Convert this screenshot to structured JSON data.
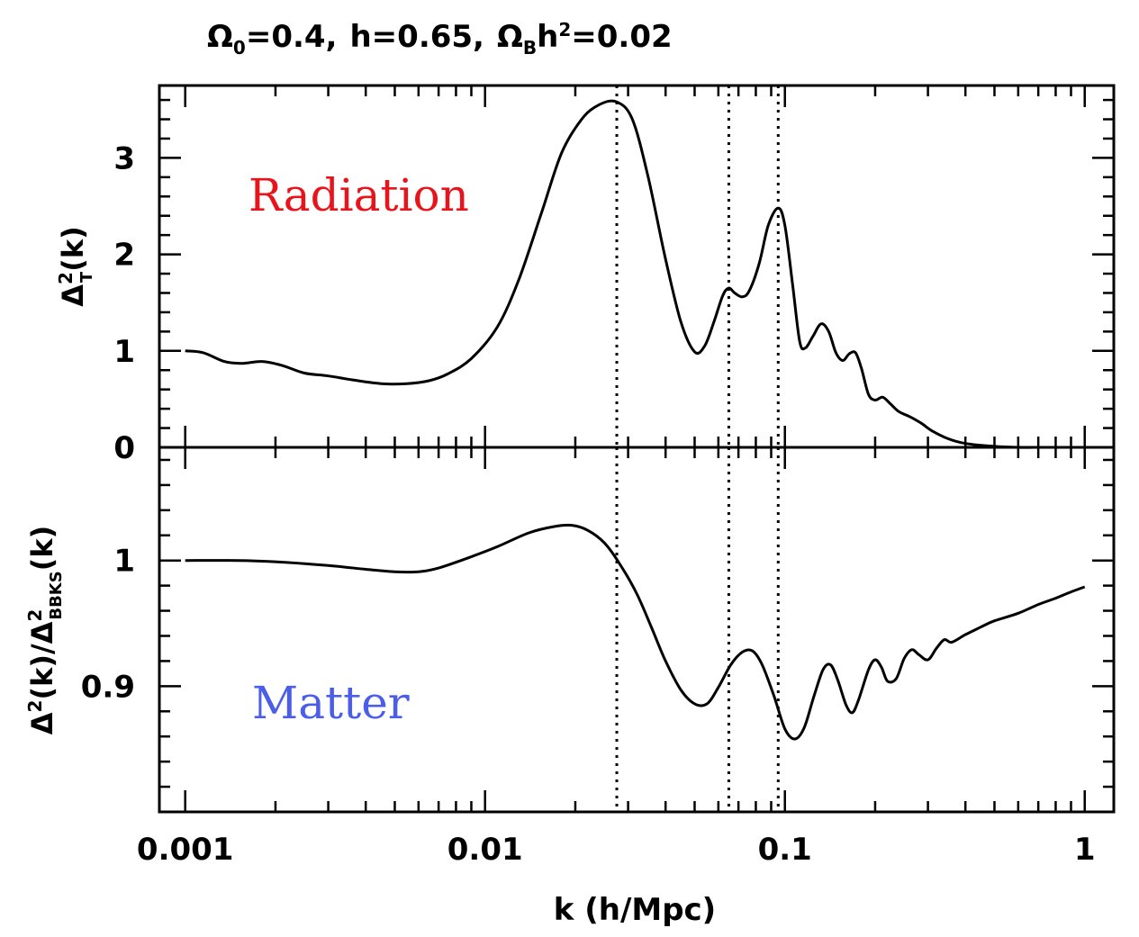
{
  "chart_data": [
    {
      "type": "line",
      "title_parts": {
        "omega0": "Ω",
        "omega0_sub": "0",
        "omega0_rest": "=0.4,",
        "h": "h=0.65,",
        "omegaB": "Ω",
        "omegaB_sub": "B",
        "omegaB_mid": "h",
        "omegaB_sup": "2",
        "omegaB_rest": "=0.02"
      },
      "xscale": "log",
      "xlim": [
        0.00082,
        1.25
      ],
      "ylim": [
        0,
        3.75
      ],
      "ylabel": {
        "delta": "Δ",
        "sup": "2",
        "sub": "T",
        "rest": "(k)"
      },
      "yticks": [
        {
          "value": 0,
          "label": "0"
        },
        {
          "value": 1,
          "label": "1"
        },
        {
          "value": 2,
          "label": "2"
        },
        {
          "value": 3,
          "label": "3"
        }
      ],
      "annotation": {
        "text": "Radiation",
        "color": "#e8141c"
      },
      "reference_lines_k": [
        0.0275,
        0.065,
        0.095
      ],
      "series": [
        {
          "points": [
            [
              0.001,
              1.0
            ],
            [
              0.00115,
              0.98
            ],
            [
              0.00135,
              0.89
            ],
            [
              0.00155,
              0.87
            ],
            [
              0.0018,
              0.89
            ],
            [
              0.0021,
              0.85
            ],
            [
              0.0025,
              0.77
            ],
            [
              0.003,
              0.74
            ],
            [
              0.0036,
              0.7
            ],
            [
              0.0045,
              0.66
            ],
            [
              0.0055,
              0.66
            ],
            [
              0.0065,
              0.69
            ],
            [
              0.0075,
              0.76
            ],
            [
              0.009,
              0.92
            ],
            [
              0.011,
              1.25
            ],
            [
              0.013,
              1.75
            ],
            [
              0.0155,
              2.45
            ],
            [
              0.018,
              3.05
            ],
            [
              0.021,
              3.4
            ],
            [
              0.024,
              3.55
            ],
            [
              0.0275,
              3.58
            ],
            [
              0.031,
              3.4
            ],
            [
              0.035,
              2.8
            ],
            [
              0.04,
              1.95
            ],
            [
              0.045,
              1.3
            ],
            [
              0.05,
              0.99
            ],
            [
              0.054,
              1.05
            ],
            [
              0.058,
              1.3
            ],
            [
              0.062,
              1.57
            ],
            [
              0.065,
              1.65
            ],
            [
              0.068,
              1.6
            ],
            [
              0.072,
              1.56
            ],
            [
              0.076,
              1.62
            ],
            [
              0.082,
              1.9
            ],
            [
              0.088,
              2.3
            ],
            [
              0.095,
              2.48
            ],
            [
              0.1,
              2.3
            ],
            [
              0.106,
              1.7
            ],
            [
              0.112,
              1.1
            ],
            [
              0.117,
              1.03
            ],
            [
              0.124,
              1.15
            ],
            [
              0.132,
              1.28
            ],
            [
              0.14,
              1.2
            ],
            [
              0.148,
              0.98
            ],
            [
              0.156,
              0.9
            ],
            [
              0.164,
              0.97
            ],
            [
              0.172,
              0.98
            ],
            [
              0.18,
              0.82
            ],
            [
              0.19,
              0.55
            ],
            [
              0.2,
              0.49
            ],
            [
              0.212,
              0.52
            ],
            [
              0.225,
              0.45
            ],
            [
              0.24,
              0.37
            ],
            [
              0.26,
              0.32
            ],
            [
              0.285,
              0.25
            ],
            [
              0.31,
              0.17
            ],
            [
              0.35,
              0.09
            ],
            [
              0.4,
              0.04
            ],
            [
              0.5,
              0.01
            ],
            [
              0.6,
              0.0
            ],
            [
              0.7,
              0.0
            ]
          ]
        }
      ]
    },
    {
      "type": "line",
      "xscale": "log",
      "xlim": [
        0.00082,
        1.25
      ],
      "ylim": [
        0.8,
        1.09
      ],
      "xlabel": "k (h/Mpc)",
      "xticks": [
        {
          "value": 0.001,
          "label": "0.001"
        },
        {
          "value": 0.01,
          "label": "0.01"
        },
        {
          "value": 0.1,
          "label": "0.1"
        },
        {
          "value": 1,
          "label": "1"
        }
      ],
      "ylabel": {
        "delta1": "Δ",
        "sup1": "2",
        "mid": "(k)/",
        "delta2": "Δ",
        "sup2": "2",
        "sub2": "BBKS",
        "rest": "(k)"
      },
      "yticks": [
        {
          "value": 0.9,
          "label": "0.9"
        },
        {
          "value": 1,
          "label": "1"
        }
      ],
      "annotation": {
        "text": "Matter",
        "color": "#4a5ee8"
      },
      "reference_lines_k": [
        0.0275,
        0.065,
        0.095
      ],
      "series": [
        {
          "points": [
            [
              0.001,
              1.0
            ],
            [
              0.0015,
              1.0
            ],
            [
              0.002,
              0.999
            ],
            [
              0.003,
              0.996
            ],
            [
              0.004,
              0.993
            ],
            [
              0.005,
              0.991
            ],
            [
              0.006,
              0.991
            ],
            [
              0.007,
              0.994
            ],
            [
              0.009,
              1.003
            ],
            [
              0.011,
              1.011
            ],
            [
              0.014,
              1.022
            ],
            [
              0.017,
              1.027
            ],
            [
              0.0195,
              1.028
            ],
            [
              0.022,
              1.024
            ],
            [
              0.025,
              1.014
            ],
            [
              0.028,
              0.998
            ],
            [
              0.032,
              0.974
            ],
            [
              0.036,
              0.946
            ],
            [
              0.04,
              0.92
            ],
            [
              0.045,
              0.897
            ],
            [
              0.05,
              0.886
            ],
            [
              0.055,
              0.886
            ],
            [
              0.06,
              0.899
            ],
            [
              0.066,
              0.917
            ],
            [
              0.072,
              0.927
            ],
            [
              0.078,
              0.928
            ],
            [
              0.084,
              0.917
            ],
            [
              0.092,
              0.892
            ],
            [
              0.1,
              0.866
            ],
            [
              0.108,
              0.858
            ],
            [
              0.116,
              0.867
            ],
            [
              0.125,
              0.892
            ],
            [
              0.134,
              0.913
            ],
            [
              0.142,
              0.917
            ],
            [
              0.15,
              0.905
            ],
            [
              0.16,
              0.885
            ],
            [
              0.168,
              0.879
            ],
            [
              0.176,
              0.889
            ],
            [
              0.19,
              0.913
            ],
            [
              0.2,
              0.921
            ],
            [
              0.21,
              0.915
            ],
            [
              0.22,
              0.904
            ],
            [
              0.235,
              0.906
            ],
            [
              0.25,
              0.922
            ],
            [
              0.265,
              0.929
            ],
            [
              0.28,
              0.925
            ],
            [
              0.3,
              0.921
            ],
            [
              0.32,
              0.93
            ],
            [
              0.34,
              0.937
            ],
            [
              0.36,
              0.935
            ],
            [
              0.4,
              0.941
            ],
            [
              0.45,
              0.947
            ],
            [
              0.5,
              0.952
            ],
            [
              0.6,
              0.958
            ],
            [
              0.7,
              0.965
            ],
            [
              0.8,
              0.97
            ],
            [
              0.9,
              0.975
            ],
            [
              1.0,
              0.979
            ]
          ]
        }
      ]
    }
  ]
}
